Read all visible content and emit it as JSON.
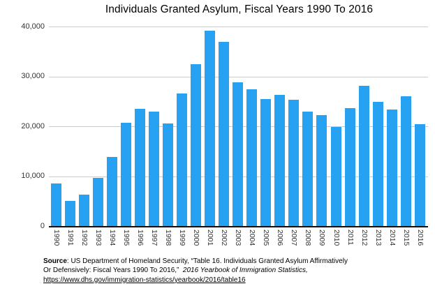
{
  "chart_data": {
    "type": "bar",
    "title": "Individuals Granted Asylum, Fiscal Years 1990 To 2016",
    "xlabel": "",
    "ylabel": "",
    "categories": [
      "1990",
      "1991",
      "1992",
      "1993",
      "1994",
      "1995",
      "1996",
      "1997",
      "1998",
      "1999",
      "2000",
      "2001",
      "2002",
      "2003",
      "2004",
      "2005",
      "2006",
      "2007",
      "2008",
      "2009",
      "2010",
      "2011",
      "2012",
      "2013",
      "2014",
      "2015",
      "2016"
    ],
    "values": [
      8500,
      5000,
      6300,
      9600,
      13800,
      20700,
      23500,
      22900,
      20500,
      26600,
      32500,
      39200,
      36900,
      28800,
      27400,
      25400,
      26300,
      25300,
      23000,
      22200,
      19800,
      23600,
      28100,
      24900,
      23300,
      26000,
      20400
    ],
    "ylim": [
      0,
      40000
    ],
    "yticks": [
      0,
      10000,
      20000,
      30000,
      40000
    ],
    "ytick_labels": [
      "0",
      "10,000",
      "20,000",
      "30,000",
      "40,000"
    ],
    "grid": true,
    "legend": "none"
  },
  "colors": {
    "bar": "#27a2f2",
    "grid": "#cccccc",
    "axis": "#111111",
    "tick_text": "#333333",
    "title_text": "#000000"
  },
  "source": {
    "bold_label": "Source",
    "line1_rest": ": US Department of Homeland Security, “Table 16. Individuals Granted Asylum Affirmatively",
    "line2_plain": "Or Defensively: Fiscal Years 1990 To 2016,”  ",
    "line2_italic": "2016 Yearbook of Immigration Statistics,",
    "line3_link": "https://www.dhs.gov/immigration-statistics/yearbook/2016/table16"
  }
}
